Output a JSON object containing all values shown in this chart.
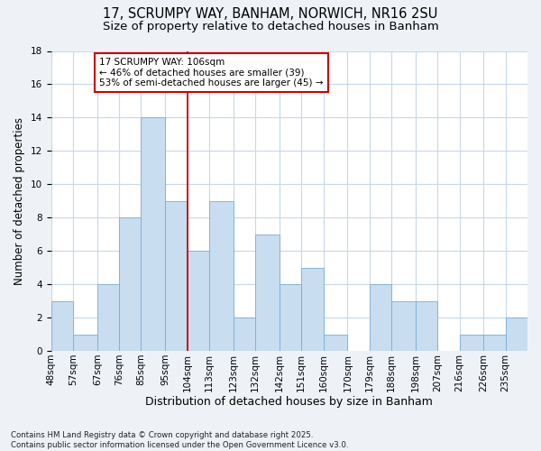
{
  "title1": "17, SCRUMPY WAY, BANHAM, NORWICH, NR16 2SU",
  "title2": "Size of property relative to detached houses in Banham",
  "xlabel": "Distribution of detached houses by size in Banham",
  "ylabel": "Number of detached properties",
  "bins_left": [
    48,
    57,
    67,
    76,
    85,
    95,
    104,
    113,
    123,
    132,
    142,
    151,
    160,
    170,
    179,
    188,
    198,
    207,
    216,
    226,
    235
  ],
  "counts": [
    3,
    1,
    4,
    8,
    14,
    9,
    6,
    9,
    2,
    7,
    4,
    5,
    1,
    0,
    4,
    3,
    3,
    0,
    1,
    1,
    2
  ],
  "bar_facecolor": "#c8ddf0",
  "bar_edgecolor": "#7badd4",
  "grid_color": "#c8d8e8",
  "vline_x": 104,
  "vline_color": "#cc0000",
  "annotation_box_text": "17 SCRUMPY WAY: 106sqm\n← 46% of detached houses are smaller (39)\n53% of semi-detached houses are larger (45) →",
  "annotation_box_facecolor": "white",
  "annotation_box_edgecolor": "#cc0000",
  "ylim": [
    0,
    18
  ],
  "yticks": [
    0,
    2,
    4,
    6,
    8,
    10,
    12,
    14,
    16,
    18
  ],
  "tick_labels": [
    "48sqm",
    "57sqm",
    "67sqm",
    "76sqm",
    "85sqm",
    "95sqm",
    "104sqm",
    "113sqm",
    "123sqm",
    "132sqm",
    "142sqm",
    "151sqm",
    "160sqm",
    "170sqm",
    "179sqm",
    "188sqm",
    "198sqm",
    "207sqm",
    "216sqm",
    "226sqm",
    "235sqm"
  ],
  "footnote": "Contains HM Land Registry data © Crown copyright and database right 2025.\nContains public sector information licensed under the Open Government Licence v3.0.",
  "background_color": "#eef2f7",
  "plot_background": "white",
  "title1_fontsize": 10.5,
  "title2_fontsize": 9.5,
  "xlabel_fontsize": 9,
  "ylabel_fontsize": 8.5,
  "tick_fontsize": 7.5,
  "annotation_fontsize": 7.5,
  "footnote_fontsize": 6.2
}
